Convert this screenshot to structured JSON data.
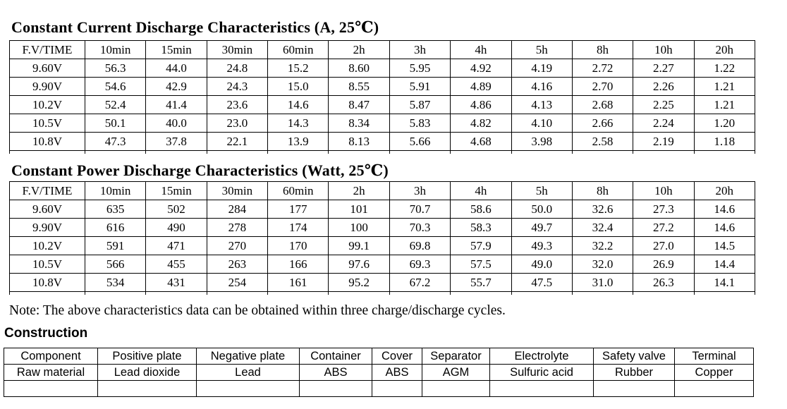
{
  "page": {
    "text_color": "#000000",
    "background_color": "#ffffff",
    "constant_current": {
      "title": "Constant Current Discharge Characteristics (A, 25℃)",
      "headers": [
        "F.V/TIME",
        "10min",
        "15min",
        "30min",
        "60min",
        "2h",
        "3h",
        "4h",
        "5h",
        "8h",
        "10h",
        "20h"
      ],
      "rows": [
        [
          "9.60V",
          "56.3",
          "44.0",
          "24.8",
          "15.2",
          "8.60",
          "5.95",
          "4.92",
          "4.19",
          "2.72",
          "2.27",
          "1.22"
        ],
        [
          "9.90V",
          "54.6",
          "42.9",
          "24.3",
          "15.0",
          "8.55",
          "5.91",
          "4.89",
          "4.16",
          "2.70",
          "2.26",
          "1.21"
        ],
        [
          "10.2V",
          "52.4",
          "41.4",
          "23.6",
          "14.6",
          "8.47",
          "5.87",
          "4.86",
          "4.13",
          "2.68",
          "2.25",
          "1.21"
        ],
        [
          "10.5V",
          "50.1",
          "40.0",
          "23.0",
          "14.3",
          "8.34",
          "5.83",
          "4.82",
          "4.10",
          "2.66",
          "2.24",
          "1.20"
        ],
        [
          "10.8V",
          "47.3",
          "37.8",
          "22.1",
          "13.9",
          "8.13",
          "5.66",
          "4.68",
          "3.98",
          "2.58",
          "2.19",
          "1.18"
        ]
      ]
    },
    "constant_power": {
      "title": "Constant Power Discharge Characteristics (Watt, 25℃)",
      "headers": [
        "F.V/TIME",
        "10min",
        "15min",
        "30min",
        "60min",
        "2h",
        "3h",
        "4h",
        "5h",
        "8h",
        "10h",
        "20h"
      ],
      "rows": [
        [
          "9.60V",
          "635",
          "502",
          "284",
          "177",
          "101",
          "70.7",
          "58.6",
          "50.0",
          "32.6",
          "27.3",
          "14.6"
        ],
        [
          "9.90V",
          "616",
          "490",
          "278",
          "174",
          "100",
          "70.3",
          "58.3",
          "49.7",
          "32.4",
          "27.2",
          "14.6"
        ],
        [
          "10.2V",
          "591",
          "471",
          "270",
          "170",
          "99.1",
          "69.8",
          "57.9",
          "49.3",
          "32.2",
          "27.0",
          "14.5"
        ],
        [
          "10.5V",
          "566",
          "455",
          "263",
          "166",
          "97.6",
          "69.3",
          "57.5",
          "49.0",
          "32.0",
          "26.9",
          "14.4"
        ],
        [
          "10.8V",
          "534",
          "431",
          "254",
          "161",
          "95.2",
          "67.2",
          "55.7",
          "47.5",
          "31.0",
          "26.3",
          "14.1"
        ]
      ]
    },
    "note": "Note: The above characteristics data can be obtained within three charge/discharge cycles.",
    "construction": {
      "title": "Construction",
      "headers": [
        "Component",
        "Positive plate",
        "Negative plate",
        "Container",
        "Cover",
        "Separator",
        "Electrolyte",
        "Safety valve",
        "Terminal"
      ],
      "rows": [
        [
          "Raw material",
          "Lead dioxide",
          "Lead",
          "ABS",
          "ABS",
          "AGM",
          "Sulfuric acid",
          "Rubber",
          "Copper"
        ]
      ]
    }
  }
}
